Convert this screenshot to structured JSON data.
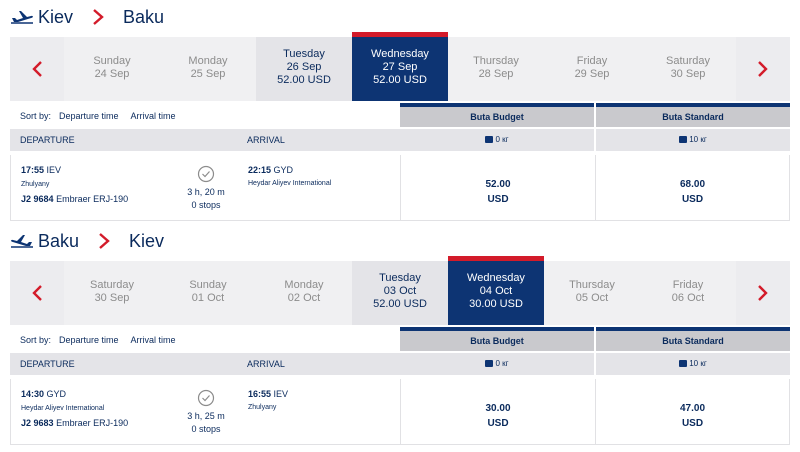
{
  "outbound": {
    "from": "Kiev",
    "to": "Baku",
    "days": [
      {
        "weekday": "Sunday",
        "date": "24 Sep",
        "price": ""
      },
      {
        "weekday": "Monday",
        "date": "25 Sep",
        "price": ""
      },
      {
        "weekday": "Tuesday",
        "date": "26 Sep",
        "price": "52.00 USD"
      },
      {
        "weekday": "Wednesday",
        "date": "27 Sep",
        "price": "52.00 USD"
      },
      {
        "weekday": "Thursday",
        "date": "28 Sep",
        "price": ""
      },
      {
        "weekday": "Friday",
        "date": "29 Sep",
        "price": ""
      },
      {
        "weekday": "Saturday",
        "date": "30 Sep",
        "price": ""
      }
    ],
    "selected_day": 3,
    "sort": {
      "label": "Sort by:",
      "options": [
        "Departure time",
        "Arrival time"
      ]
    },
    "columns": {
      "departure": "DEPARTURE",
      "arrival": "ARRIVAL"
    },
    "fares": [
      {
        "name": "Buta Budget",
        "luggage": "0 кг",
        "price": "52.00",
        "currency": "USD"
      },
      {
        "name": "Buta Standard",
        "luggage": "10 кг",
        "price": "68.00",
        "currency": "USD"
      }
    ],
    "flight": {
      "dep_time": "17:55",
      "dep_code": "IEV",
      "dep_airport": "Zhulyany",
      "flight_no": "J2 9684",
      "aircraft": "Embraer ERJ-190",
      "duration": "3 h, 20 m",
      "stops": "0 stops",
      "arr_time": "22:15",
      "arr_code": "GYD",
      "arr_airport": "Heydar Aliyev International"
    }
  },
  "inbound": {
    "from": "Baku",
    "to": "Kiev",
    "days": [
      {
        "weekday": "Saturday",
        "date": "30 Sep",
        "price": ""
      },
      {
        "weekday": "Sunday",
        "date": "01 Oct",
        "price": ""
      },
      {
        "weekday": "Monday",
        "date": "02 Oct",
        "price": ""
      },
      {
        "weekday": "Tuesday",
        "date": "03 Oct",
        "price": "52.00 USD"
      },
      {
        "weekday": "Wednesday",
        "date": "04 Oct",
        "price": "30.00 USD"
      },
      {
        "weekday": "Thursday",
        "date": "05 Oct",
        "price": ""
      },
      {
        "weekday": "Friday",
        "date": "06 Oct",
        "price": ""
      }
    ],
    "selected_day": 4,
    "sort": {
      "label": "Sort by:",
      "options": [
        "Departure time",
        "Arrival time"
      ]
    },
    "columns": {
      "departure": "DEPARTURE",
      "arrival": "ARRIVAL"
    },
    "fares": [
      {
        "name": "Buta Budget",
        "luggage": "0 кг",
        "price": "30.00",
        "currency": "USD"
      },
      {
        "name": "Buta Standard",
        "luggage": "10 кг",
        "price": "47.00",
        "currency": "USD"
      }
    ],
    "flight": {
      "dep_time": "14:30",
      "dep_code": "GYD",
      "dep_airport": "Heydar Aliyev International",
      "flight_no": "J2 9683",
      "aircraft": "Embraer ERJ-190",
      "duration": "3 h, 25 m",
      "stops": "0 stops",
      "arr_time": "16:55",
      "arr_code": "IEV",
      "arr_airport": "Zhulyany"
    }
  },
  "colors": {
    "navy": "#0d3473",
    "accent_red": "#d31b2a",
    "bar_bg": "#f0f0f2",
    "price_day_bg": "#e4e4e8"
  },
  "icons": {
    "outbound_plane": "plane-takeoff-icon",
    "inbound_plane": "plane-landing-icon",
    "prev": "chevron-left-icon",
    "next": "chevron-right-icon",
    "duration": "clock-icon",
    "luggage": "suitcase-icon"
  }
}
